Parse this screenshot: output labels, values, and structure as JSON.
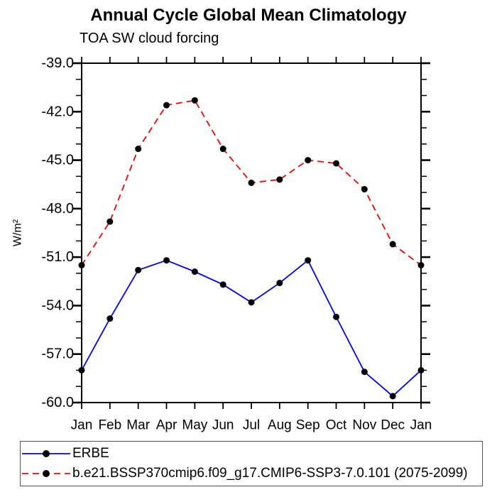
{
  "title": "Annual Cycle Global Mean Climatology",
  "subtitle": "TOA SW cloud forcing",
  "chart_data": {
    "type": "line",
    "categories": [
      "Jan",
      "Feb",
      "Mar",
      "Apr",
      "May",
      "Jun",
      "Jul",
      "Aug",
      "Sep",
      "Oct",
      "Nov",
      "Dec",
      "Jan"
    ],
    "ylabel": "W/m²",
    "ylim": [
      -60,
      -39
    ],
    "y_major_tick_step": 3,
    "y_minor_tick_step": 1,
    "y_tick_labels": [
      "-39.0",
      "-42.0",
      "-45.0",
      "-48.0",
      "-51.0",
      "-54.0",
      "-57.0",
      "-60.0"
    ],
    "grid": false,
    "legend_position": "bottom-left-box",
    "frame_color": "#000000",
    "series": [
      {
        "name": "ERBE",
        "color": "#0000ff",
        "line_style": "solid",
        "marker": "filled-circle",
        "marker_color": "#000000",
        "values": [
          -58.0,
          -54.8,
          -51.8,
          -51.2,
          -51.9,
          -52.7,
          -53.8,
          -52.6,
          -51.2,
          -54.7,
          -58.1,
          -59.6,
          -58.0
        ]
      },
      {
        "name": "b.e21.BSSP370cmip6.f09_g17.CMIP6-SSP3-7.0.101 (2075-2099)",
        "color": "#ff0000",
        "line_style": "dashed",
        "marker": "filled-circle",
        "marker_color": "#000000",
        "values": [
          -51.5,
          -48.8,
          -44.3,
          -41.6,
          -41.3,
          -44.3,
          -46.4,
          -46.2,
          -45.0,
          -45.2,
          -46.8,
          -50.2,
          -51.5
        ]
      }
    ]
  }
}
